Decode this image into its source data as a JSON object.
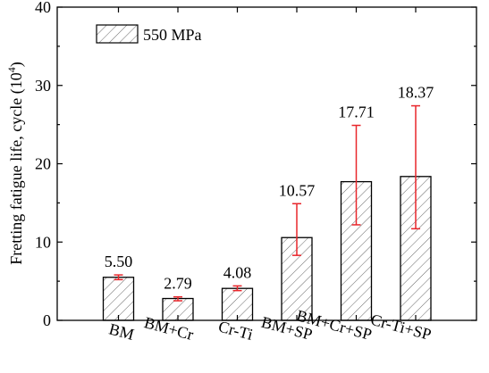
{
  "chart_data": {
    "type": "bar",
    "categories": [
      "BM",
      "BM+Cr",
      "Cr-Ti",
      "BM+SP",
      "BM+Cr+SP",
      "Cr-Ti+SP"
    ],
    "series": [
      {
        "name": "550 MPa",
        "values": [
          5.5,
          2.79,
          4.08,
          10.57,
          17.71,
          18.37
        ],
        "error_low": [
          5.2,
          2.5,
          3.8,
          8.3,
          12.2,
          11.7
        ],
        "error_high": [
          5.8,
          3.0,
          4.4,
          14.9,
          24.9,
          27.4
        ]
      }
    ],
    "data_labels": [
      "5.50",
      "2.79",
      "4.08",
      "10.57",
      "17.71",
      "18.37"
    ],
    "ylabel_main": "Fretting fatigue life, cycle (10",
    "ylabel_sup": "4",
    "ylabel_end": ")",
    "ylim": [
      0,
      40
    ],
    "yticks": [
      0,
      10,
      20,
      30,
      40
    ],
    "legend_position": "top-left",
    "bar_fill": "diagonal-hatch",
    "error_bar_color": "#e8262b",
    "grid": false
  }
}
